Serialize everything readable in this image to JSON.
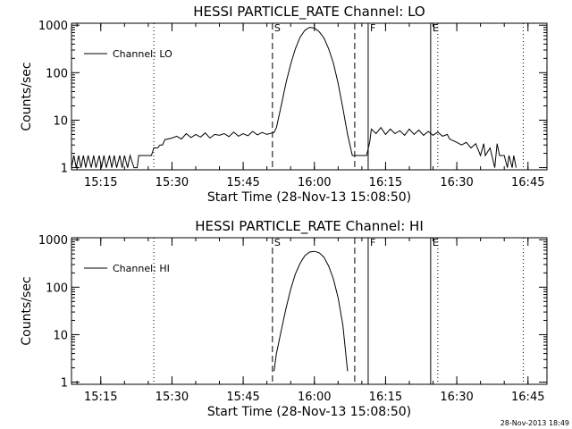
{
  "footer": {
    "timestamp": "28-Nov-2013 18:49"
  },
  "chart_data": [
    {
      "type": "line",
      "title": "HESSI PARTICLE_RATE Channel: LO",
      "xlabel": "Start Time (28-Nov-13 15:08:50)",
      "ylabel": "Counts/sec",
      "yscale": "log",
      "ylim": [
        0.9,
        1100
      ],
      "xlim": [
        "15:08:50",
        "16:49:00"
      ],
      "x_ticks": [
        "15:15",
        "15:30",
        "15:45",
        "16:00",
        "16:15",
        "16:30",
        "16:45"
      ],
      "y_ticks": [
        "1",
        "10",
        "100",
        "1000"
      ],
      "legend": {
        "label": "Channel: LO",
        "placement": "top-left"
      },
      "series": [
        {
          "name": "Channel: LO",
          "points": [
            [
              "15:08:50",
              1
            ],
            [
              "15:09:20",
              1.8
            ],
            [
              "15:09:50",
              1
            ],
            [
              "15:10:20",
              1.8
            ],
            [
              "15:10:50",
              1
            ],
            [
              "15:11:20",
              1.8
            ],
            [
              "15:11:50",
              1
            ],
            [
              "15:12:20",
              1.8
            ],
            [
              "15:13:00",
              1
            ],
            [
              "15:13:30",
              1.8
            ],
            [
              "15:14:00",
              1
            ],
            [
              "15:14:40",
              1.8
            ],
            [
              "15:15:10",
              1
            ],
            [
              "15:15:40",
              1.8
            ],
            [
              "15:16:10",
              1
            ],
            [
              "15:16:50",
              1.8
            ],
            [
              "15:17:20",
              1
            ],
            [
              "15:17:50",
              1.8
            ],
            [
              "15:18:20",
              1
            ],
            [
              "15:19:00",
              1.8
            ],
            [
              "15:19:30",
              1
            ],
            [
              "15:20:00",
              1.8
            ],
            [
              "15:20:40",
              1
            ],
            [
              "15:21:10",
              1.8
            ],
            [
              "15:22:00",
              1
            ],
            [
              "15:22:40",
              1
            ],
            [
              "15:23:00",
              1.8
            ],
            [
              "15:25:40",
              1.8
            ],
            [
              "15:26:10",
              2.6
            ],
            [
              "15:27:00",
              2.6
            ],
            [
              "15:27:30",
              3.0
            ],
            [
              "15:28:00",
              3.0
            ],
            [
              "15:28:30",
              3.9
            ],
            [
              "15:30",
              4.2
            ],
            [
              "15:31",
              4.6
            ],
            [
              "15:32",
              4.0
            ],
            [
              "15:33",
              5.2
            ],
            [
              "15:34",
              4.3
            ],
            [
              "15:35",
              5.0
            ],
            [
              "15:36",
              4.4
            ],
            [
              "15:37",
              5.4
            ],
            [
              "15:38",
              4.2
            ],
            [
              "15:39",
              5.0
            ],
            [
              "15:40",
              4.8
            ],
            [
              "15:41",
              5.2
            ],
            [
              "15:42",
              4.5
            ],
            [
              "15:43",
              5.6
            ],
            [
              "15:44",
              4.6
            ],
            [
              "15:45",
              5.2
            ],
            [
              "15:46",
              4.7
            ],
            [
              "15:47",
              5.8
            ],
            [
              "15:48",
              4.9
            ],
            [
              "15:49",
              5.5
            ],
            [
              "15:50",
              5.0
            ],
            [
              "15:51:30",
              5.5
            ],
            [
              "15:52",
              7
            ],
            [
              "15:53",
              20
            ],
            [
              "15:54",
              60
            ],
            [
              "15:55",
              150
            ],
            [
              "15:56",
              320
            ],
            [
              "15:57",
              560
            ],
            [
              "15:58",
              780
            ],
            [
              "15:59",
              900
            ],
            [
              "16:00",
              870
            ],
            [
              "16:01",
              730
            ],
            [
              "16:02",
              540
            ],
            [
              "16:03",
              320
            ],
            [
              "16:04",
              160
            ],
            [
              "16:05",
              60
            ],
            [
              "16:06",
              18
            ],
            [
              "16:07",
              5
            ],
            [
              "16:08",
              1.8
            ],
            [
              "16:10",
              1.8
            ],
            [
              "16:11",
              1.8
            ],
            [
              "16:11:40",
              3.5
            ],
            [
              "16:12",
              6.5
            ],
            [
              "16:13",
              5.2
            ],
            [
              "16:14",
              7.0
            ],
            [
              "16:15",
              5.0
            ],
            [
              "16:16",
              6.5
            ],
            [
              "16:17",
              5.2
            ],
            [
              "16:18",
              6.0
            ],
            [
              "16:19",
              4.8
            ],
            [
              "16:20",
              6.5
            ],
            [
              "16:21",
              5.0
            ],
            [
              "16:22",
              6.2
            ],
            [
              "16:23",
              4.8
            ],
            [
              "16:24",
              5.8
            ],
            [
              "16:25",
              4.8
            ],
            [
              "16:26",
              5.6
            ],
            [
              "16:27",
              4.6
            ],
            [
              "16:28",
              5.0
            ],
            [
              "16:28:30",
              4.0
            ],
            [
              "16:29",
              3.8
            ],
            [
              "16:30",
              3.4
            ],
            [
              "16:31",
              3.0
            ],
            [
              "16:32",
              3.4
            ],
            [
              "16:33",
              2.6
            ],
            [
              "16:34",
              3.2
            ],
            [
              "16:35",
              1.8
            ],
            [
              "16:35:40",
              3.2
            ],
            [
              "16:36",
              1.8
            ],
            [
              "16:37",
              2.6
            ],
            [
              "16:38",
              1.0
            ],
            [
              "16:38:30",
              3.2
            ],
            [
              "16:39",
              1.8
            ],
            [
              "16:40",
              1.8
            ],
            [
              "16:40:40",
              1.0
            ],
            [
              "16:41",
              1.8
            ],
            [
              "16:41:40",
              1.0
            ],
            [
              "16:42",
              1.8
            ],
            [
              "16:42:30",
              1.0
            ]
          ]
        }
      ],
      "markers": [
        {
          "label": "S",
          "x": "15:51:10",
          "style": "dashed"
        },
        {
          "label": "",
          "x": "16:08:30",
          "style": "dashed"
        },
        {
          "label": "F",
          "x": "16:11:20",
          "style": "solid"
        },
        {
          "label": "E",
          "x": "16:24:30",
          "style": "solid"
        },
        {
          "label": "",
          "x": "15:26:10",
          "style": "dotted"
        },
        {
          "label": "",
          "x": "16:26:00",
          "style": "dotted"
        },
        {
          "label": "",
          "x": "16:44:00",
          "style": "dotted"
        }
      ]
    },
    {
      "type": "line",
      "title": "HESSI PARTICLE_RATE Channel: HI",
      "xlabel": "Start Time (28-Nov-13 15:08:50)",
      "ylabel": "Counts/sec",
      "yscale": "log",
      "ylim": [
        0.9,
        1100
      ],
      "xlim": [
        "15:08:50",
        "16:49:00"
      ],
      "x_ticks": [
        "15:15",
        "15:30",
        "15:45",
        "16:00",
        "16:15",
        "16:30",
        "16:45"
      ],
      "y_ticks": [
        "1",
        "10",
        "100",
        "1000"
      ],
      "legend": {
        "label": "Channel: HI",
        "placement": "top-left"
      },
      "series": [
        {
          "name": "Channel: HI",
          "points": [
            [
              "15:51:30",
              1.7
            ],
            [
              "15:52",
              4
            ],
            [
              "15:53",
              12
            ],
            [
              "15:54",
              35
            ],
            [
              "15:55",
              90
            ],
            [
              "15:56",
              190
            ],
            [
              "15:57",
              320
            ],
            [
              "15:58",
              460
            ],
            [
              "15:59",
              550
            ],
            [
              "16:00",
              570
            ],
            [
              "16:01",
              530
            ],
            [
              "16:02",
              430
            ],
            [
              "16:03",
              280
            ],
            [
              "16:04",
              150
            ],
            [
              "16:05",
              60
            ],
            [
              "16:06",
              16
            ],
            [
              "16:07",
              1.7
            ]
          ]
        }
      ],
      "markers": [
        {
          "label": "S",
          "x": "15:51:10",
          "style": "dashed"
        },
        {
          "label": "",
          "x": "16:08:30",
          "style": "dashed"
        },
        {
          "label": "F",
          "x": "16:11:20",
          "style": "solid"
        },
        {
          "label": "E",
          "x": "16:24:30",
          "style": "solid"
        },
        {
          "label": "",
          "x": "15:26:10",
          "style": "dotted"
        },
        {
          "label": "",
          "x": "16:26:00",
          "style": "dotted"
        },
        {
          "label": "",
          "x": "16:44:00",
          "style": "dotted"
        }
      ]
    }
  ]
}
